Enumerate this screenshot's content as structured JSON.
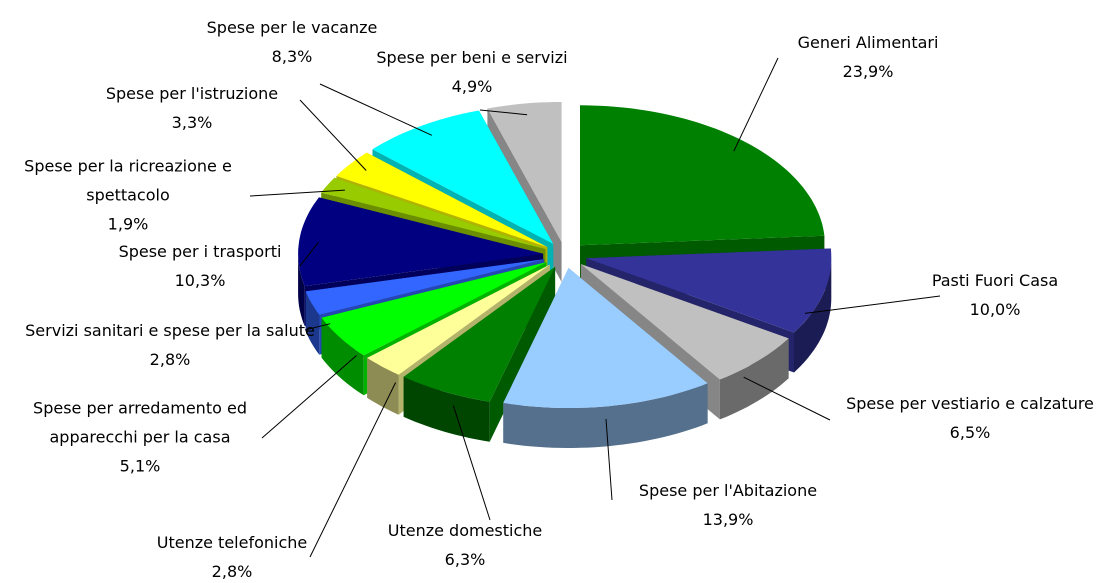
{
  "chart_data": {
    "type": "pie",
    "categories": [
      "Generi Alimentari",
      "Pasti Fuori Casa",
      "Spese per vestiario e calzature",
      "Spese per l'Abitazione",
      "Utenze domestiche",
      "Utenze telefoniche",
      "Spese per arredamento ed apparecchi per la casa",
      "Servizi sanitari e spese per la salute",
      "Spese per i trasporti",
      "Spese per la ricreazione e spettacolo",
      "Spese per l'istruzione",
      "Spese per le vacanze",
      "Spese per beni e servizi"
    ],
    "values": [
      23.9,
      10.0,
      6.5,
      13.9,
      6.3,
      2.8,
      5.1,
      2.8,
      10.3,
      1.9,
      3.3,
      8.3,
      4.9
    ],
    "value_labels": [
      "23,9%",
      "10,0%",
      "6,5%",
      "13,9%",
      "6,3%",
      "2,8%",
      "5,1%",
      "2,8%",
      "10,3%",
      "1,9%",
      "3,3%",
      "8,3%",
      "4,9%"
    ],
    "colors": [
      "#008000",
      "#333399",
      "#c0c0c0",
      "#99ccff",
      "#008000",
      "#ffff99",
      "#00ff00",
      "#3366ff",
      "#000080",
      "#99cc00",
      "#ffff00",
      "#00ffff",
      "#c0c0c0"
    ]
  }
}
